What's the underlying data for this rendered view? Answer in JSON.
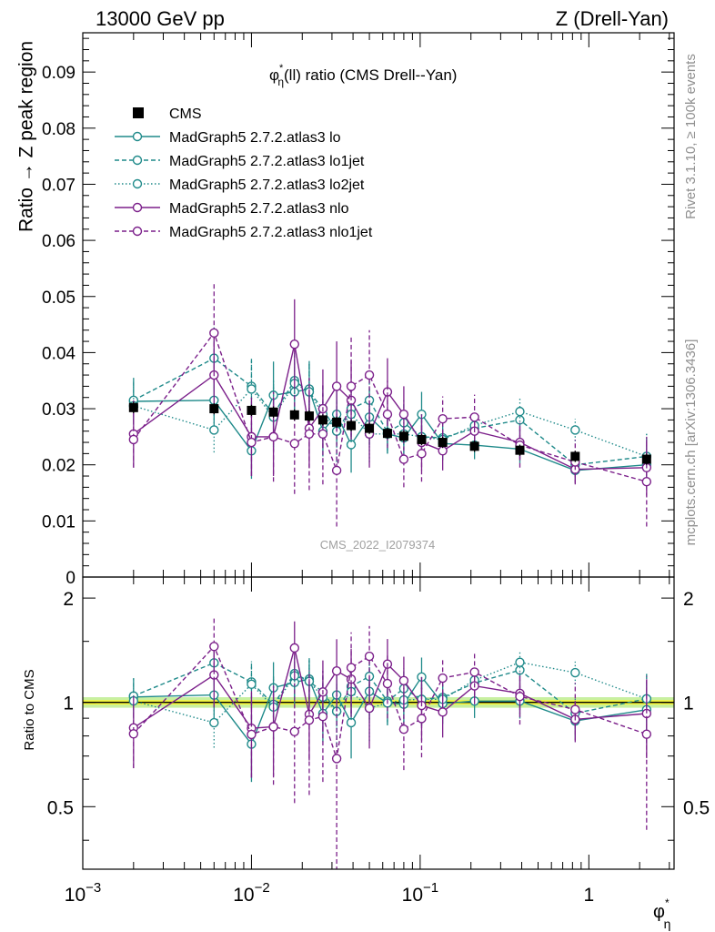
{
  "header": {
    "left": "13000 GeV pp",
    "right": "Z (Drell-Yan)"
  },
  "side_labels": {
    "rivet": "Rivet 3.1.10, ≥ 100k events",
    "mcplots": "mcplots.cern.ch [arXiv:1306.3436]"
  },
  "plot_title": {
    "phi": "φ",
    "star": "*",
    "eta": "η",
    "rest": "(ll) ratio (CMS Drell--Yan)"
  },
  "watermark": "CMS_2022_I2079374",
  "colors": {
    "cms": "#000000",
    "teal": "#1f8a8a",
    "purple": "#7b1f8a",
    "band_inner": "#f5f53a",
    "band_outer": "#c8f0a0"
  },
  "chart_data": [
    {
      "type": "scatter",
      "panel": "main",
      "ylabel": "Ratio → Z peak region",
      "xscale": "log",
      "xlim": [
        0.001,
        3.2
      ],
      "ylim": [
        0,
        0.097
      ],
      "yticks": [
        0,
        0.01,
        0.02,
        0.03,
        0.04,
        0.05,
        0.06,
        0.07,
        0.08,
        0.09
      ],
      "ytick_labels": [
        "0",
        "0.01",
        "0.02",
        "0.03",
        "0.04",
        "0.05",
        "0.06",
        "0.07",
        "0.08",
        "0.09"
      ],
      "legend_position": "top-left",
      "x": [
        0.002,
        0.006,
        0.01,
        0.0135,
        0.018,
        0.022,
        0.0265,
        0.032,
        0.039,
        0.05,
        0.064,
        0.08,
        0.102,
        0.136,
        0.21,
        0.39,
        0.83,
        2.2
      ],
      "series": [
        {
          "name": "CMS",
          "style": "data",
          "y": [
            0.0302,
            0.03,
            0.0297,
            0.0294,
            0.0289,
            0.0287,
            0.028,
            0.0276,
            0.027,
            0.0265,
            0.0256,
            0.0251,
            0.0245,
            0.024,
            0.0233,
            0.0226,
            0.0215,
            0.021
          ],
          "err": [
            0.001,
            0.001,
            0.001,
            0.001,
            0.001,
            0.001,
            0.001,
            0.001,
            0.001,
            0.001,
            0.001,
            0.001,
            0.001,
            0.001,
            0.001,
            0.001,
            0.001,
            0.001
          ]
        },
        {
          "name": "MadGraph5 2.7.2.atlas3 lo",
          "style": "solid",
          "color": "teal",
          "y": [
            0.0313,
            0.0315,
            0.0225,
            0.0324,
            0.033,
            0.0335,
            0.026,
            0.029,
            0.0236,
            0.0285,
            0.0255,
            0.0248,
            0.029,
            0.0238,
            0.0235,
            0.0228,
            0.019,
            0.02
          ],
          "err": [
            0.004,
            0.006,
            0.005,
            0.006,
            0.005,
            0.005,
            0.0045,
            0.0055,
            0.005,
            0.005,
            0.0035,
            0.004,
            0.004,
            0.003,
            0.0025,
            0.0025,
            0.002,
            0.004
          ]
        },
        {
          "name": "MadGraph5 2.7.2.atlas3 lo1jet",
          "style": "dashed",
          "color": "teal",
          "y": [
            0.0315,
            0.039,
            0.034,
            0.029,
            0.035,
            0.033,
            0.03,
            0.026,
            0.03,
            0.0315,
            0.0258,
            0.0275,
            0.025,
            0.0248,
            0.0265,
            0.028,
            0.02,
            0.0215
          ],
          "err": [
            0.004,
            0.0055,
            0.005,
            0.006,
            0.005,
            0.005,
            0.0045,
            0.0055,
            0.005,
            0.005,
            0.0035,
            0.004,
            0.004,
            0.003,
            0.0025,
            0.0025,
            0.002,
            0.004
          ]
        },
        {
          "name": "MadGraph5 2.7.2.atlas3 lo2jet",
          "style": "dotted",
          "color": "teal",
          "y": [
            0.0305,
            0.0262,
            0.0335,
            0.0285,
            0.0345,
            0.033,
            0.029,
            0.026,
            0.029,
            0.0255,
            0.0255,
            0.0255,
            0.025,
            0.0245,
            0.027,
            0.0295,
            0.0262,
            0.0215
          ],
          "err": [
            0.004,
            0.004,
            0.005,
            0.006,
            0.005,
            0.005,
            0.0045,
            0.0055,
            0.005,
            0.005,
            0.0035,
            0.004,
            0.004,
            0.003,
            0.0025,
            0.0025,
            0.002,
            0.004
          ]
        },
        {
          "name": "MadGraph5 2.7.2.atlas3 nlo",
          "style": "solid",
          "color": "purple",
          "y": [
            0.0255,
            0.036,
            0.025,
            0.025,
            0.0415,
            0.0265,
            0.03,
            0.034,
            0.0315,
            0.0255,
            0.033,
            0.029,
            0.024,
            0.0225,
            0.026,
            0.024,
            0.0192,
            0.0195
          ],
          "err": [
            0.006,
            0.007,
            0.007,
            0.007,
            0.008,
            0.007,
            0.007,
            0.008,
            0.007,
            0.006,
            0.006,
            0.005,
            0.005,
            0.0035,
            0.003,
            0.003,
            0.0025,
            0.005
          ]
        },
        {
          "name": "MadGraph5 2.7.2.atlas3 nlo1jet",
          "style": "dashed",
          "color": "purple",
          "y": [
            0.0245,
            0.0435,
            0.024,
            0.025,
            0.0238,
            0.0255,
            0.0255,
            0.019,
            0.034,
            0.036,
            0.029,
            0.021,
            0.022,
            0.0282,
            0.0285,
            0.0235,
            0.0205,
            0.017
          ],
          "err": [
            0.005,
            0.009,
            0.006,
            0.008,
            0.009,
            0.01,
            0.009,
            0.01,
            0.009,
            0.008,
            0.006,
            0.005,
            0.005,
            0.004,
            0.004,
            0.004,
            0.004,
            0.008
          ]
        }
      ]
    },
    {
      "type": "scatter",
      "panel": "ratio",
      "ylabel": "Ratio to CMS",
      "xlabel_symbol": "φ",
      "xlabel_star": "*",
      "xlabel_sub": "η",
      "xscale": "log",
      "xlim": [
        0.001,
        3.2
      ],
      "ylim": [
        0.33,
        2.3
      ],
      "yscale": "log",
      "yticks": [
        0.5,
        1,
        2
      ],
      "ytick_labels": [
        "0.5",
        "1",
        "2"
      ],
      "xticks": [
        0.001,
        0.01,
        0.1,
        1
      ],
      "xtick_labels": [
        {
          "base": "10",
          "exp": "−3"
        },
        {
          "base": "10",
          "exp": "−2"
        },
        {
          "base": "10",
          "exp": "−1"
        },
        {
          "base": "1",
          "exp": ""
        }
      ],
      "band": {
        "inner": [
          0.985,
          1.015
        ],
        "outer": [
          0.965,
          1.035
        ]
      }
    }
  ]
}
